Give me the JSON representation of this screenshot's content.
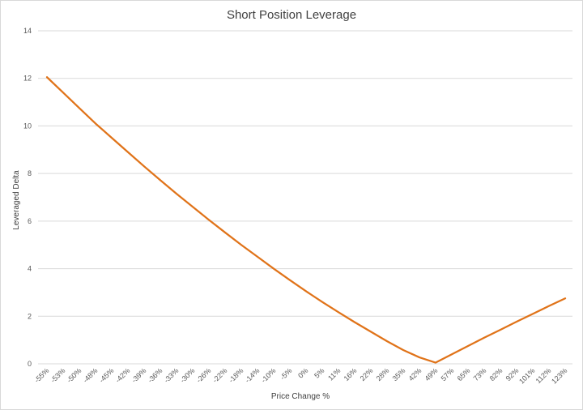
{
  "chart_data": {
    "type": "line",
    "title": "Short Position Leverage",
    "xlabel": "Price Change %",
    "ylabel": "Leveraged Delta",
    "ylim": [
      0,
      14
    ],
    "yticks": [
      "0",
      "2",
      "4",
      "6",
      "8",
      "10",
      "12",
      "14"
    ],
    "grid": true,
    "legend": "none",
    "line_color": "#E07319",
    "categories": [
      "-55%",
      "-53%",
      "-50%",
      "-48%",
      "-45%",
      "-42%",
      "-39%",
      "-36%",
      "-33%",
      "-30%",
      "-26%",
      "-22%",
      "-18%",
      "-14%",
      "-10%",
      "-5%",
      "0%",
      "5%",
      "11%",
      "16%",
      "22%",
      "28%",
      "35%",
      "42%",
      "49%",
      "57%",
      "65%",
      "73%",
      "82%",
      "92%",
      "101%",
      "112%",
      "123%"
    ],
    "series": [
      {
        "values": [
          12.05,
          11.4,
          10.75,
          10.1,
          9.5,
          8.9,
          8.3,
          7.72,
          7.15,
          6.6,
          6.05,
          5.52,
          5.0,
          4.5,
          4.0,
          3.52,
          3.05,
          2.6,
          2.17,
          1.75,
          1.35,
          0.95,
          0.58,
          0.27,
          0.05,
          0.4,
          0.75,
          1.1,
          1.43,
          1.77,
          2.1,
          2.43,
          2.75
        ]
      }
    ]
  }
}
